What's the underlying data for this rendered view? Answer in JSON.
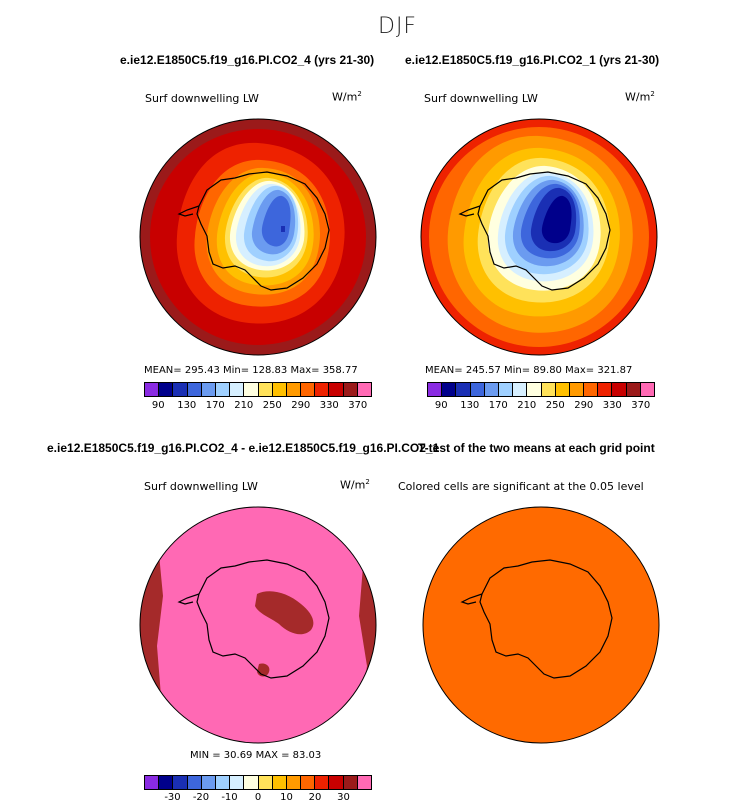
{
  "suptitle": "DJF",
  "panels": {
    "p1": {
      "title": "e.ie12.E1850C5.f19_g16.PI.CO2_4 (yrs 21-30)",
      "var_label": "Surf downwelling LW",
      "units_base": "W/m",
      "units_exp": "2",
      "stats": "MEAN= 295.43   Min= 128.83   Max= 358.77",
      "ticks": [
        "90",
        "130",
        "170",
        "210",
        "250",
        "290",
        "330",
        "370"
      ]
    },
    "p2": {
      "title": "e.ie12.E1850C5.f19_g16.PI.CO2_1 (yrs 21-30)",
      "var_label": "Surf downwelling LW",
      "units_base": "W/m",
      "units_exp": "2",
      "stats": "MEAN= 245.57   Min= 89.80   Max= 321.87",
      "ticks": [
        "90",
        "130",
        "170",
        "210",
        "250",
        "290",
        "330",
        "370"
      ]
    },
    "p3": {
      "title": "e.ie12.E1850C5.f19_g16.PI.CO2_4 - e.ie12.E1850C5.f19_g16.PI.CO2_1",
      "var_label": "Surf downwelling LW",
      "units_base": "W/m",
      "units_exp": "2",
      "stats": "MIN =  30.69  MAX =  83.03",
      "ticks": [
        "-30",
        "-20",
        "-10",
        "0",
        "10",
        "20",
        "30"
      ]
    },
    "p4": {
      "title": "T-test of the two means at each grid point",
      "subtitle": "Colored cells are significant at the 0.05 level"
    }
  },
  "colors": {
    "abs_scale": [
      "#8a2be2",
      "#00008b",
      "#1a2fb4",
      "#3d66dc",
      "#6b9bf0",
      "#9fd0ff",
      "#d6efff",
      "#ffffe0",
      "#ffe25a",
      "#ffc000",
      "#ff9a00",
      "#ff6600",
      "#ee2200",
      "#c80000",
      "#9b1a1a",
      "#ff69b4"
    ],
    "diff_scale": [
      "#8a2be2",
      "#00008b",
      "#1a2fb4",
      "#3d66dc",
      "#6b9bf0",
      "#9fd0ff",
      "#d6efff",
      "#ffffe0",
      "#ffe25a",
      "#ffc000",
      "#ff9a00",
      "#ff6600",
      "#ee2200",
      "#c80000",
      "#9b1a1a",
      "#ff69b4"
    ],
    "significance_fill": "#ff6a00",
    "diff_background": "#ff69b4",
    "diff_high": "#a52a2a"
  }
}
